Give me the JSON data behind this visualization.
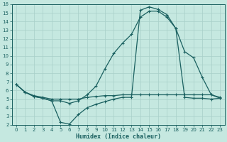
{
  "xlabel": "Humidex (Indice chaleur)",
  "bg_color": "#c5e8e0",
  "grid_color": "#a8cfc8",
  "line_color": "#1a6060",
  "xlim": [
    -0.5,
    23.5
  ],
  "ylim": [
    2,
    16
  ],
  "xticks": [
    0,
    1,
    2,
    3,
    4,
    5,
    6,
    7,
    8,
    9,
    10,
    11,
    12,
    13,
    14,
    15,
    16,
    17,
    18,
    19,
    20,
    21,
    22,
    23
  ],
  "yticks": [
    2,
    3,
    4,
    5,
    6,
    7,
    8,
    9,
    10,
    11,
    12,
    13,
    14,
    15,
    16
  ],
  "curve1_x": [
    0,
    1,
    2,
    3,
    4,
    5,
    6,
    7,
    8,
    9,
    10,
    11,
    12,
    13,
    14,
    15,
    16,
    17,
    18,
    19,
    20,
    21,
    22,
    23
  ],
  "curve1_y": [
    6.7,
    5.8,
    5.4,
    5.2,
    5.0,
    5.0,
    5.0,
    5.0,
    5.2,
    5.3,
    5.4,
    5.4,
    5.5,
    5.5,
    5.5,
    5.5,
    5.5,
    5.5,
    5.5,
    5.5,
    5.5,
    5.5,
    5.5,
    5.2
  ],
  "curve2_x": [
    0,
    1,
    2,
    3,
    4,
    5,
    6,
    7,
    8,
    9,
    10,
    11,
    12,
    13,
    14,
    15,
    16,
    17,
    18,
    19,
    20,
    21,
    22,
    23
  ],
  "curve2_y": [
    6.7,
    5.8,
    5.3,
    5.1,
    4.8,
    2.3,
    2.1,
    3.2,
    4.0,
    4.4,
    4.7,
    5.0,
    5.2,
    5.2,
    15.3,
    15.7,
    15.4,
    14.8,
    13.2,
    5.2,
    5.1,
    5.1,
    5.0,
    5.1
  ],
  "curve3_x": [
    0,
    1,
    2,
    3,
    4,
    5,
    6,
    7,
    8,
    9,
    10,
    11,
    12,
    13,
    14,
    15,
    16,
    17,
    18,
    19,
    20,
    21,
    22,
    23
  ],
  "curve3_y": [
    6.7,
    5.8,
    5.3,
    5.1,
    4.8,
    4.8,
    4.5,
    4.8,
    5.5,
    6.5,
    8.5,
    10.3,
    11.5,
    12.5,
    14.5,
    15.2,
    15.2,
    14.5,
    13.2,
    10.5,
    9.8,
    7.5,
    5.5,
    5.1
  ]
}
